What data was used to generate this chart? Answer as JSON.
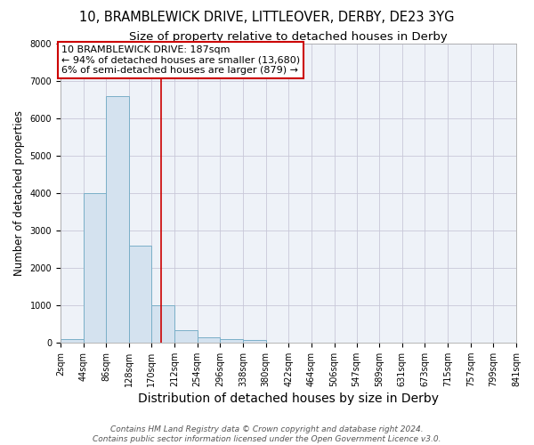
{
  "title": "10, BRAMBLEWICK DRIVE, LITTLEOVER, DERBY, DE23 3YG",
  "subtitle": "Size of property relative to detached houses in Derby",
  "xlabel": "Distribution of detached houses by size in Derby",
  "ylabel": "Number of detached properties",
  "footer_line1": "Contains HM Land Registry data © Crown copyright and database right 2024.",
  "footer_line2": "Contains public sector information licensed under the Open Government Licence v3.0.",
  "bin_edges": [
    2,
    44,
    86,
    128,
    170,
    212,
    254,
    296,
    338,
    380,
    422,
    464,
    506,
    547,
    589,
    631,
    673,
    715,
    757,
    799,
    841
  ],
  "bar_heights": [
    100,
    4000,
    6600,
    2600,
    1000,
    320,
    150,
    100,
    70,
    0,
    0,
    0,
    0,
    0,
    0,
    0,
    0,
    0,
    0,
    0
  ],
  "bar_color": "#cddaе8",
  "bar_fill": "#d4e2ef",
  "bar_edge_color": "#7aafc8",
  "property_size": 187,
  "vline_color": "#cc0000",
  "annotation_line1": "10 BRAMBLEWICK DRIVE: 187sqm",
  "annotation_line2": "← 94% of detached houses are smaller (13,680)",
  "annotation_line3": "6% of semi-detached houses are larger (879) →",
  "annotation_box_color": "#ffffff",
  "annotation_box_edge": "#cc0000",
  "ylim": [
    0,
    8000
  ],
  "yticks": [
    0,
    1000,
    2000,
    3000,
    4000,
    5000,
    6000,
    7000,
    8000
  ],
  "grid_color": "#c8c8d8",
  "bg_color": "#eef2f8",
  "title_fontsize": 10.5,
  "subtitle_fontsize": 9.5,
  "xlabel_fontsize": 10,
  "ylabel_fontsize": 8.5,
  "tick_fontsize": 7,
  "annotation_fontsize": 8,
  "footer_fontsize": 6.5
}
